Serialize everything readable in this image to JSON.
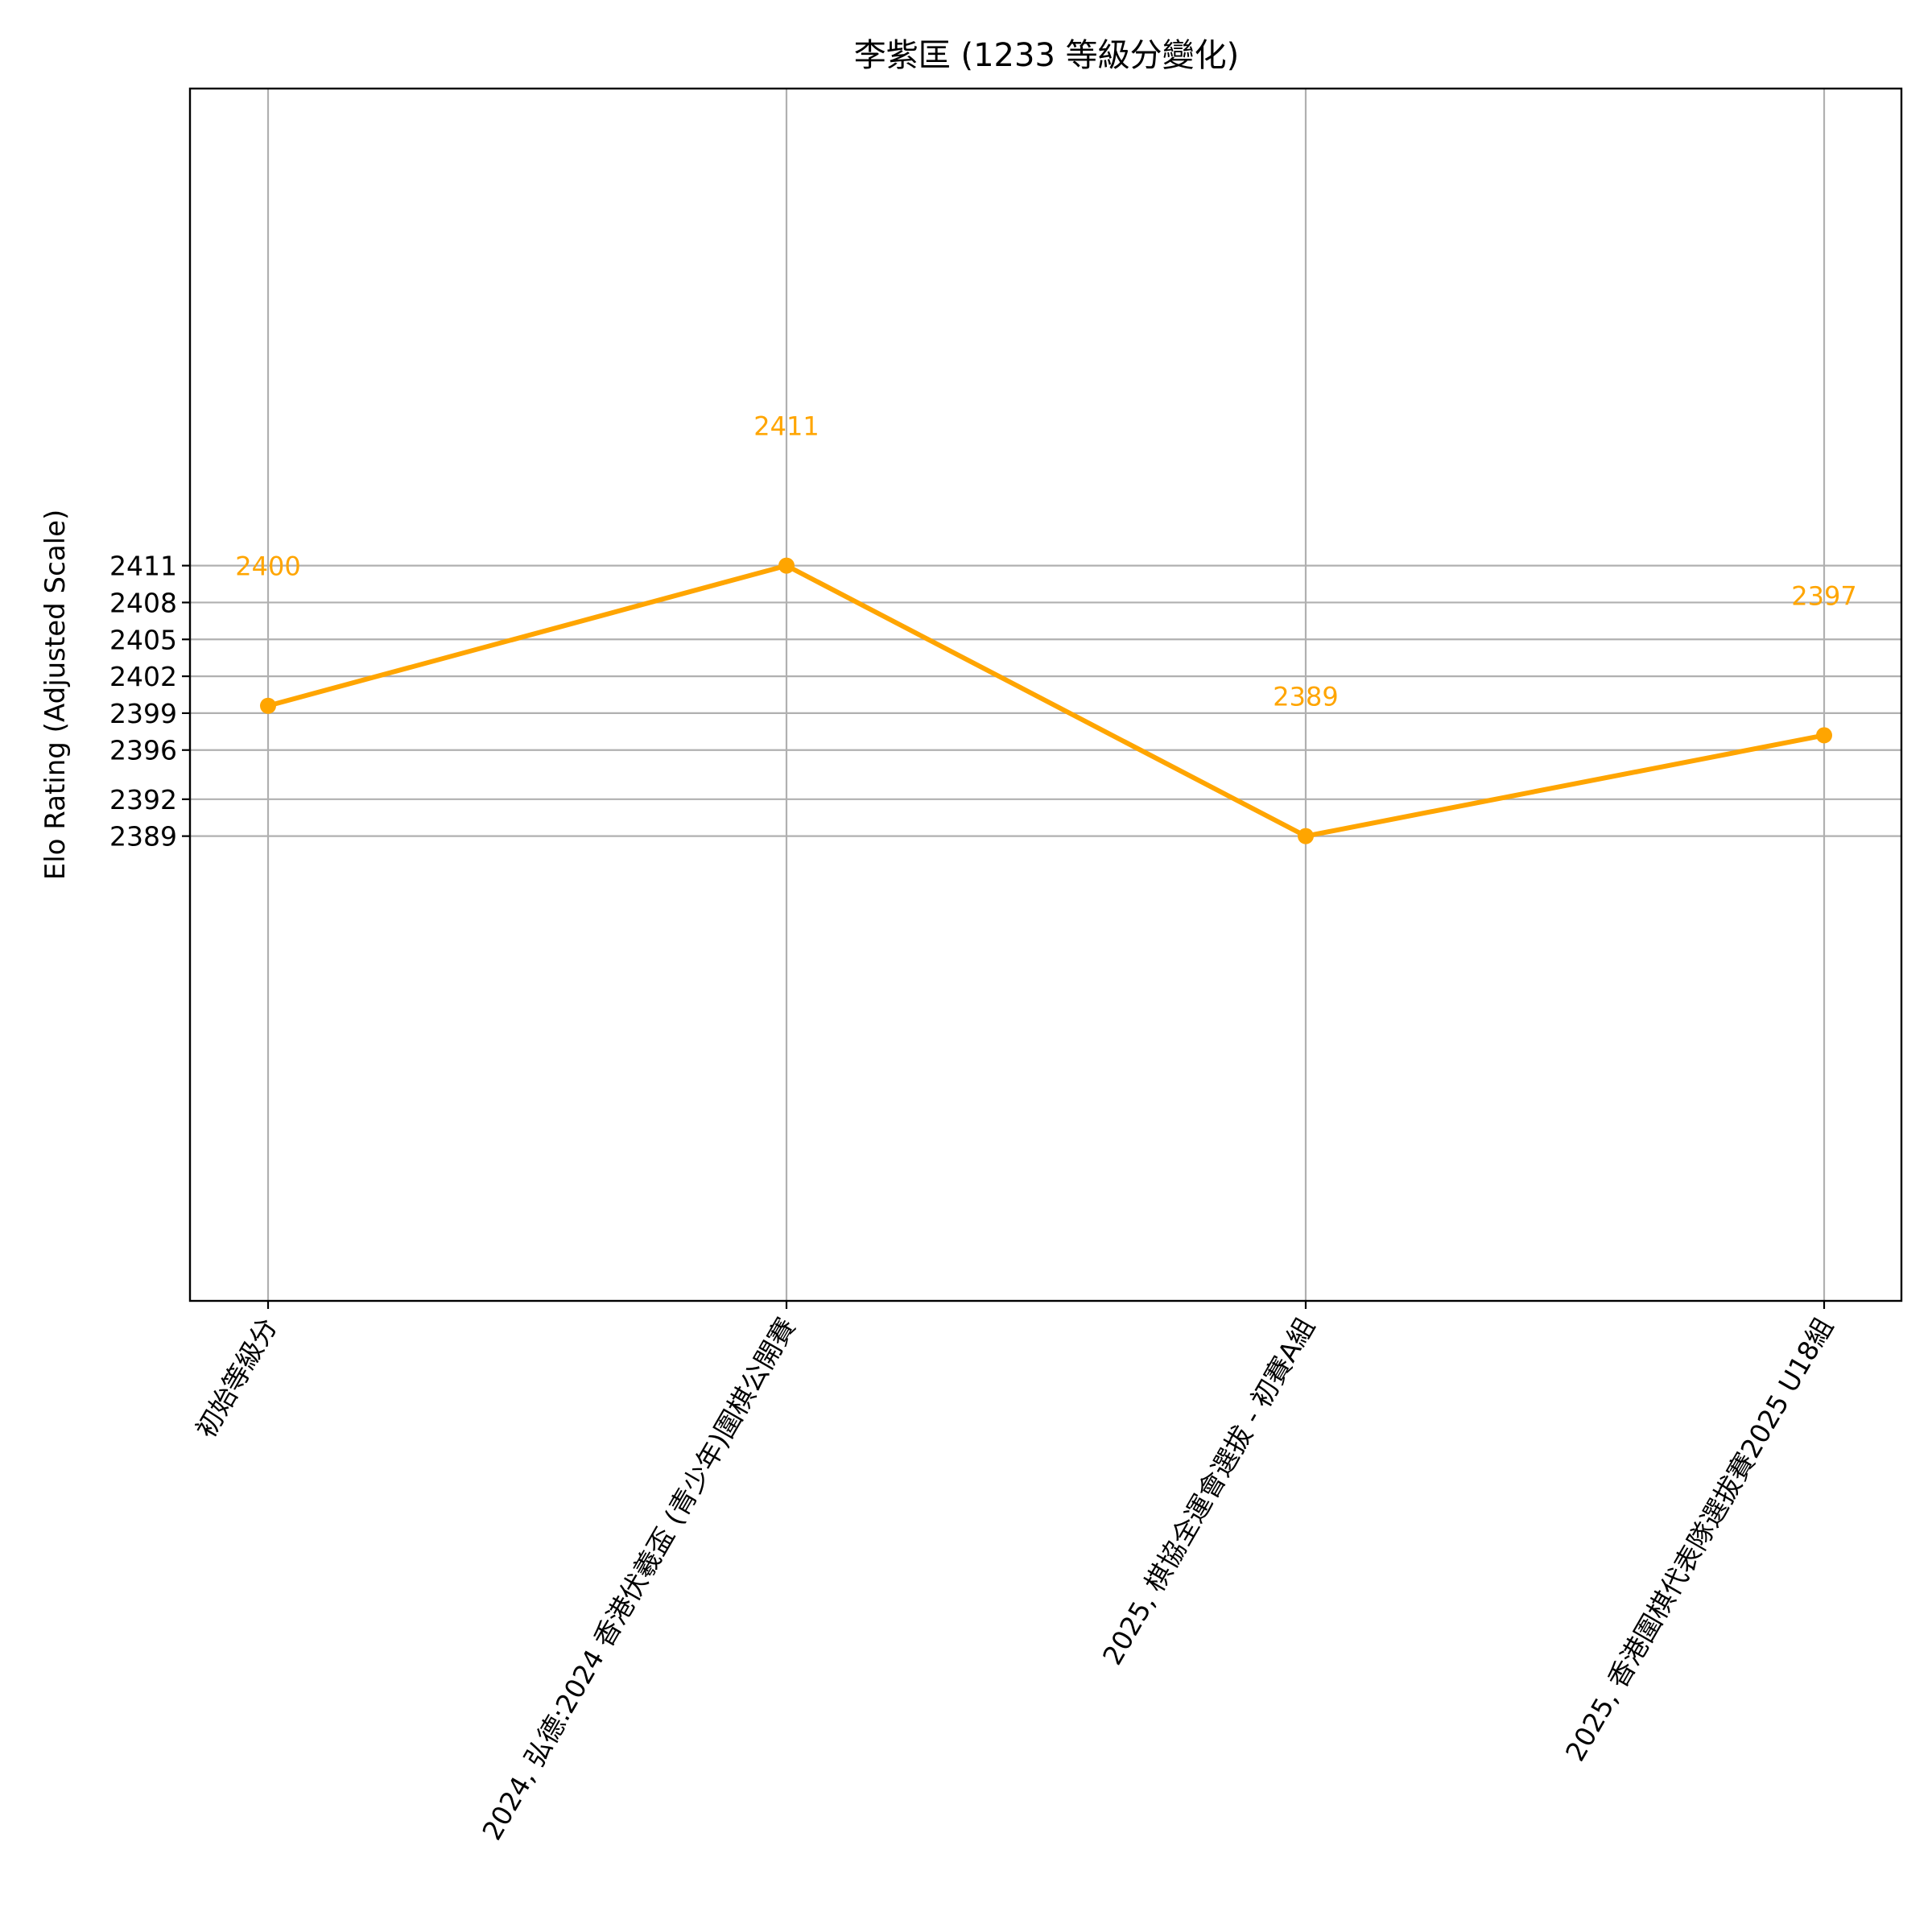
{
  "chart_data": {
    "type": "line",
    "title": "李紫匡 (1233 等級分變化)",
    "ylabel": "Elo Rating (Adjusted Scale)",
    "xlabel": "",
    "categories": [
      "初始等級分",
      "2024, 弘德:2024 香港伏羲盃 (青少年)圍棋公開賽",
      "2025, 棋協全運會選拔 - 初賽A組",
      "2025, 香港圍棋代表隊選拔賽2025 U18組"
    ],
    "series": [
      {
        "values": [
          2399.6,
          2411.0,
          2389.0,
          2397.2
        ],
        "point_labels": [
          "2400",
          "2411",
          "2389",
          "2397"
        ],
        "color": "#ffa500"
      }
    ],
    "yticks": [
      2389,
      2392,
      2396,
      2399,
      2402,
      2405,
      2408,
      2411
    ],
    "ylim": [
      2351.2,
      2449.8
    ],
    "grid": true,
    "legend": "none"
  }
}
